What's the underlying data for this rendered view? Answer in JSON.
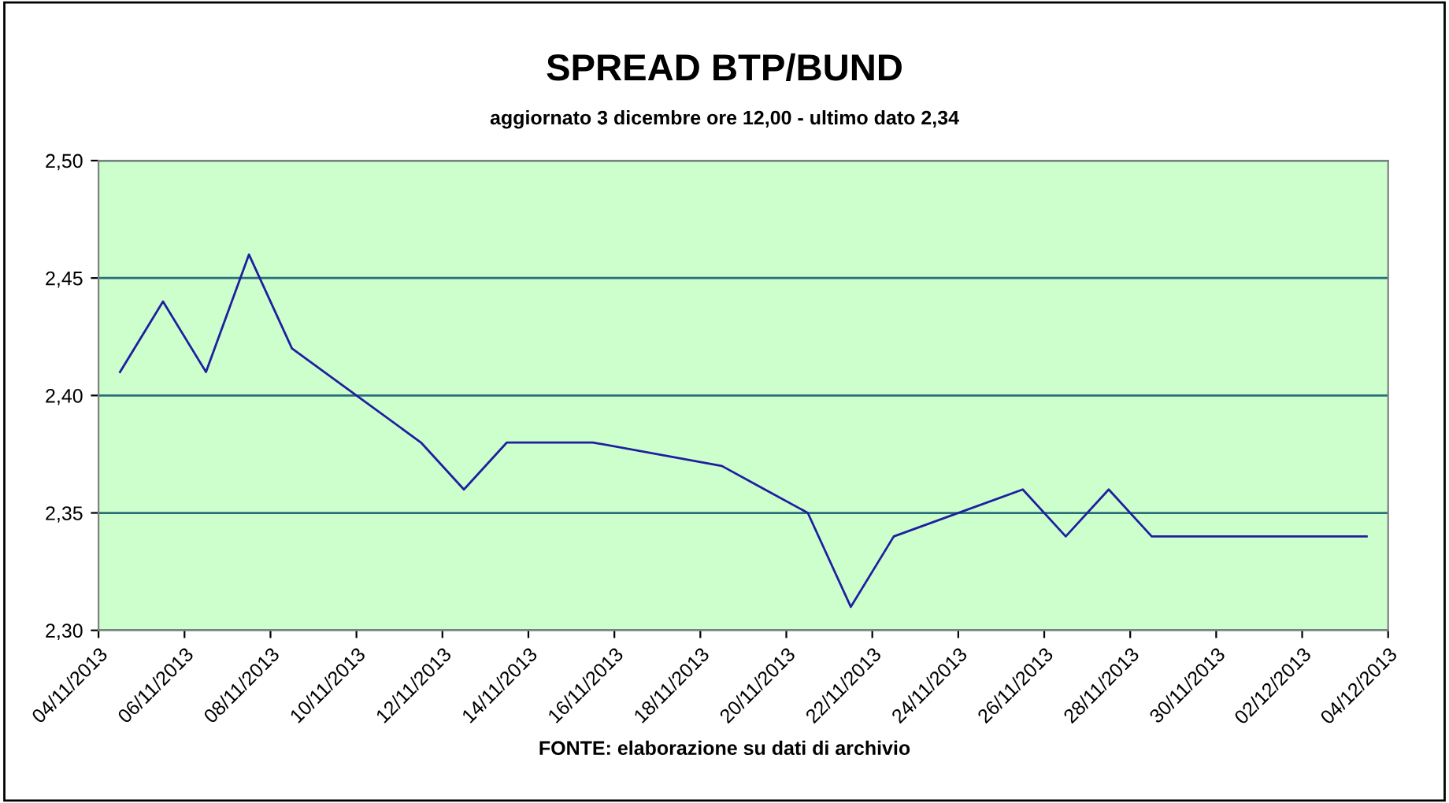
{
  "chart_data": {
    "type": "line",
    "title": "SPREAD BTP/BUND",
    "subtitle": "aggiornato 3 dicembre ore 12,00 - ultimo dato 2,34",
    "annotations": [
      "FONTE: elaborazione su dati di archivio"
    ],
    "x": [
      "2013-11-04T12:00",
      "2013-11-05T12:00",
      "2013-11-06T12:00",
      "2013-11-07T12:00",
      "2013-11-08T12:00",
      "2013-11-11T12:00",
      "2013-11-12T12:00",
      "2013-11-13T12:00",
      "2013-11-14T12:00",
      "2013-11-15T12:00",
      "2013-11-18T12:00",
      "2013-11-19T12:00",
      "2013-11-20T12:00",
      "2013-11-21T12:00",
      "2013-11-22T12:00",
      "2013-11-25T12:00",
      "2013-11-26T12:00",
      "2013-11-27T12:00",
      "2013-11-28T12:00",
      "2013-11-29T12:00",
      "2013-12-02T12:00",
      "2013-12-03T12:00"
    ],
    "series": [
      {
        "color": "#1f1fa0",
        "values": [
          2.41,
          2.44,
          2.41,
          2.46,
          2.42,
          2.38,
          2.36,
          2.38,
          2.38,
          2.38,
          2.37,
          2.36,
          2.35,
          2.31,
          2.34,
          2.36,
          2.34,
          2.36,
          2.34,
          2.34,
          2.34,
          2.34
        ]
      }
    ],
    "xlim": [
      "2013-11-04",
      "2013-12-04"
    ],
    "xticks": [
      {
        "value": "2013-11-04",
        "label": "04/11/2013"
      },
      {
        "value": "2013-11-06",
        "label": "06/11/2013"
      },
      {
        "value": "2013-11-08",
        "label": "08/11/2013"
      },
      {
        "value": "2013-11-10",
        "label": "10/11/2013"
      },
      {
        "value": "2013-11-12",
        "label": "12/11/2013"
      },
      {
        "value": "2013-11-14",
        "label": "14/11/2013"
      },
      {
        "value": "2013-11-16",
        "label": "16/11/2013"
      },
      {
        "value": "2013-11-18",
        "label": "18/11/2013"
      },
      {
        "value": "2013-11-20",
        "label": "20/11/2013"
      },
      {
        "value": "2013-11-22",
        "label": "22/11/2013"
      },
      {
        "value": "2013-11-24",
        "label": "24/11/2013"
      },
      {
        "value": "2013-11-26",
        "label": "26/11/2013"
      },
      {
        "value": "2013-11-28",
        "label": "28/11/2013"
      },
      {
        "value": "2013-11-30",
        "label": "30/11/2013"
      },
      {
        "value": "2013-12-02",
        "label": "02/12/2013"
      },
      {
        "value": "2013-12-04",
        "label": "04/12/2013"
      }
    ],
    "ylim": [
      2.3,
      2.5
    ],
    "yticks": [
      {
        "value": 2.3,
        "label": "2,30"
      },
      {
        "value": 2.35,
        "label": "2,35"
      },
      {
        "value": 2.4,
        "label": "2,40"
      },
      {
        "value": 2.45,
        "label": "2,45"
      },
      {
        "value": 2.5,
        "label": "2,50"
      }
    ],
    "grid": "y",
    "legend": false,
    "marker": "none",
    "line_style": "solid"
  }
}
